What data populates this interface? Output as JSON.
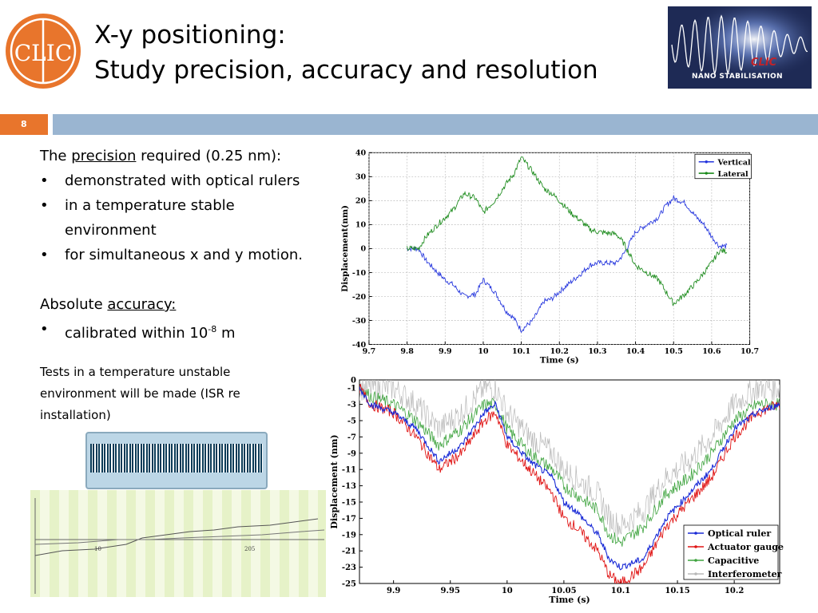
{
  "title": {
    "line1": "X-y positioning:",
    "line2": "Study precision, accuracy and resolution"
  },
  "logos": {
    "left_text": "CLIC",
    "right_text": "NANO STABILISATION",
    "right_clic": "CLIC"
  },
  "slide_number": "8",
  "content": {
    "precision_prefix": "The ",
    "precision_word": "precision",
    "precision_suffix": " required (0.25 nm):",
    "bullets_precision": [
      " demonstrated with optical rulers",
      "in a temperature stable",
      "environment",
      "for simultaneous x and y motion."
    ],
    "accuracy_prefix": "Absolute ",
    "accuracy_word": "accuracy:",
    "accuracy_bullet_prefix": "calibrated within 10",
    "accuracy_bullet_exp": "-8",
    "accuracy_bullet_suffix": " m",
    "note": "Tests in a temperature unstable environment will be made (ISR re installation)"
  },
  "photo_plot_labels": {
    "tick_left": "10",
    "tick_right": "205"
  },
  "colors": {
    "accent_orange": "#e8752c",
    "bar_blue": "#9ab5d1",
    "vertical": "#2233dd",
    "lateral": "#1a8a1a",
    "optical": "#1a2bd6",
    "actuator": "#e01515",
    "capacitive": "#3ea33e",
    "interferometer": "#b8b8b8"
  },
  "chart_data": [
    {
      "type": "line",
      "xlabel": "Time (s)",
      "ylabel": "Displacement(nm)",
      "xlim": [
        9.7,
        10.7
      ],
      "ylim": [
        -40,
        40
      ],
      "xticks": [
        "9.7",
        "9.8",
        "9.9",
        "10",
        "10.1",
        "10.2",
        "10.3",
        "10.4",
        "10.5",
        "10.6",
        "10.7"
      ],
      "yticks": [
        "40",
        "30",
        "20",
        "10",
        "0",
        "-10",
        "-20",
        "-30",
        "-40"
      ],
      "legend": "top-right",
      "grid": true,
      "series": [
        {
          "name": "Vertical",
          "x": [
            9.8,
            9.83,
            9.85,
            9.88,
            9.9,
            9.92,
            9.95,
            9.98,
            10.0,
            10.03,
            10.06,
            10.08,
            10.1,
            10.13,
            10.16,
            10.18,
            10.2,
            10.23,
            10.26,
            10.28,
            10.3,
            10.35,
            10.37,
            10.4,
            10.43,
            10.46,
            10.48,
            10.5,
            10.53,
            10.56,
            10.58,
            10.6,
            10.62,
            10.64
          ],
          "y": [
            0,
            0,
            -5,
            -10,
            -13,
            -15,
            -20,
            -19,
            -13,
            -18,
            -26,
            -29,
            -34,
            -30,
            -22,
            -21,
            -18,
            -14,
            -10,
            -7,
            -6,
            -6,
            -2,
            7,
            10,
            13,
            18,
            21,
            19,
            13,
            10,
            5,
            1,
            1
          ]
        },
        {
          "name": "Lateral",
          "x": [
            9.8,
            9.83,
            9.85,
            9.88,
            9.9,
            9.92,
            9.95,
            9.98,
            10.0,
            10.03,
            10.06,
            10.08,
            10.1,
            10.13,
            10.16,
            10.18,
            10.2,
            10.23,
            10.26,
            10.28,
            10.3,
            10.35,
            10.37,
            10.4,
            10.43,
            10.46,
            10.48,
            10.5,
            10.53,
            10.56,
            10.58,
            10.6,
            10.62,
            10.64
          ],
          "y": [
            0,
            0,
            5,
            10,
            13,
            16,
            23,
            21,
            15,
            20,
            27,
            31,
            38,
            32,
            25,
            23,
            20,
            15,
            11,
            8,
            7,
            6,
            2,
            -7,
            -10,
            -13,
            -18,
            -23,
            -19,
            -14,
            -10,
            -6,
            -1,
            -1
          ]
        }
      ]
    },
    {
      "type": "line",
      "xlabel": "Time (s)",
      "ylabel": "Displacement (nm)",
      "xlim": [
        9.87,
        10.24
      ],
      "ylim": [
        -25,
        0
      ],
      "xticks": [
        "9.9",
        "9.95",
        "10",
        "10.05",
        "10.1",
        "10.15",
        "10.2"
      ],
      "yticks": [
        "0",
        "-1",
        "-3",
        "-5",
        "-7",
        "-9",
        "-11",
        "-13",
        "-15",
        "-17",
        "-19",
        "-21",
        "-23",
        "-25"
      ],
      "legend": "bottom-right",
      "grid": false,
      "series": [
        {
          "name": "Optical ruler",
          "x": [
            9.87,
            9.88,
            9.9,
            9.92,
            9.94,
            9.96,
            9.98,
            9.99,
            10.0,
            10.02,
            10.04,
            10.05,
            10.06,
            10.08,
            10.09,
            10.1,
            10.12,
            10.14,
            10.16,
            10.18,
            10.2,
            10.22,
            10.24
          ],
          "y": [
            -1,
            -3,
            -4,
            -6,
            -10,
            -8,
            -4,
            -3,
            -7,
            -10,
            -12,
            -15,
            -16,
            -19,
            -22,
            -23,
            -22,
            -17,
            -14,
            -11,
            -6,
            -4,
            -3
          ]
        },
        {
          "name": "Actuator gauge",
          "x": [
            9.87,
            9.88,
            9.9,
            9.92,
            9.94,
            9.96,
            9.98,
            9.99,
            10.0,
            10.02,
            10.04,
            10.05,
            10.06,
            10.08,
            10.09,
            10.1,
            10.12,
            10.14,
            10.16,
            10.18,
            10.2,
            10.22,
            10.24
          ],
          "y": [
            -1,
            -3,
            -4,
            -7,
            -11,
            -9,
            -5,
            -4,
            -8,
            -11,
            -14,
            -17,
            -18,
            -21,
            -24,
            -25,
            -23,
            -18,
            -15,
            -12,
            -7,
            -4,
            -3
          ]
        },
        {
          "name": "Capacitive",
          "x": [
            9.87,
            9.88,
            9.9,
            9.92,
            9.94,
            9.96,
            9.98,
            9.99,
            10.0,
            10.02,
            10.04,
            10.05,
            10.06,
            10.08,
            10.09,
            10.1,
            10.12,
            10.14,
            10.16,
            10.18,
            10.2,
            10.22,
            10.24
          ],
          "y": [
            -1,
            -2,
            -3,
            -5,
            -8,
            -6,
            -3,
            -3,
            -6,
            -9,
            -11,
            -13,
            -14,
            -16,
            -19,
            -20,
            -18,
            -14,
            -12,
            -9,
            -5,
            -3,
            -3
          ]
        },
        {
          "name": "Interferometer",
          "x": [
            9.87,
            9.88,
            9.9,
            9.92,
            9.94,
            9.96,
            9.98,
            9.99,
            10.0,
            10.02,
            10.04,
            10.05,
            10.06,
            10.08,
            10.09,
            10.1,
            10.12,
            10.14,
            10.16,
            10.18,
            10.2,
            10.22,
            10.24
          ],
          "y": [
            -1,
            -1,
            -1,
            -3,
            -6,
            -4,
            -1,
            -1,
            -4,
            -7,
            -9,
            -11,
            -12,
            -14,
            -17,
            -18,
            -16,
            -12,
            -10,
            -7,
            -3,
            -1,
            -1
          ]
        }
      ]
    }
  ]
}
